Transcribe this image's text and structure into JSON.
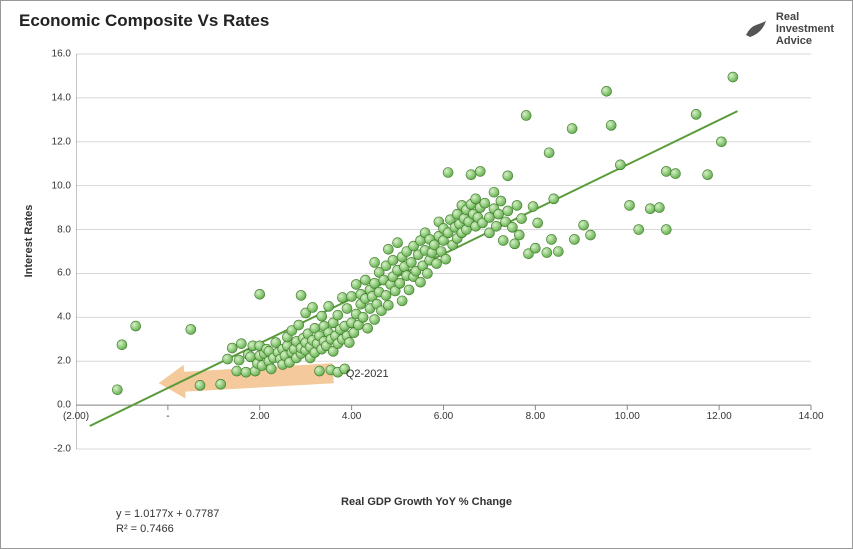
{
  "title": "Economic Composite Vs Rates",
  "brand": {
    "line1": "Real",
    "line2": "Investment",
    "line3": "Advice"
  },
  "y_axis": {
    "label": "Interest Rates",
    "min": -2.0,
    "max": 16.0,
    "step": 2.0
  },
  "x_axis": {
    "label": "Real GDP Growth YoY % Change",
    "min": -2.0,
    "max": 14.0,
    "step": 2.0
  },
  "x_ticks": [
    "(2.00)",
    "-",
    "2.00",
    "4.00",
    "6.00",
    "8.00",
    "10.00",
    "12.00",
    "14.00"
  ],
  "y_ticks": [
    "-2.0",
    "0.0",
    "2.0",
    "4.0",
    "6.0",
    "8.0",
    "10.0",
    "12.0",
    "14.0",
    "16.0"
  ],
  "trendline": {
    "slope": 1.0177,
    "intercept": 0.7787,
    "color": "#5a9b3a",
    "width": 2
  },
  "equation": {
    "formula": "y = 1.0177x + 0.7787",
    "r2": "R² = 0.7466"
  },
  "annotation": {
    "label": "Q2-2021",
    "point_x": 3.7,
    "point_y": 1.5
  },
  "arrow": {
    "from_x": 3.6,
    "from_y": 1.45,
    "to_x": -0.2,
    "to_y": 1.0,
    "color": "#f0b77a",
    "opacity": 0.75,
    "width": 20
  },
  "marker": {
    "fill": "#8dc97a",
    "stroke": "#3d7a2a",
    "radius": 5
  },
  "grid_color": "#d8d8d8",
  "axis_color": "#888888",
  "background": "#ffffff",
  "data": [
    [
      -1.1,
      0.7
    ],
    [
      -1.0,
      2.75
    ],
    [
      -0.7,
      3.6
    ],
    [
      0.5,
      3.45
    ],
    [
      0.7,
      0.9
    ],
    [
      1.15,
      0.95
    ],
    [
      1.3,
      2.1
    ],
    [
      1.4,
      2.6
    ],
    [
      1.5,
      1.55
    ],
    [
      1.55,
      2.05
    ],
    [
      1.6,
      2.8
    ],
    [
      1.7,
      1.5
    ],
    [
      1.75,
      2.3
    ],
    [
      1.8,
      2.2
    ],
    [
      1.85,
      2.7
    ],
    [
      1.9,
      1.55
    ],
    [
      1.95,
      1.9
    ],
    [
      2.0,
      2.25
    ],
    [
      2.0,
      2.7
    ],
    [
      2.0,
      5.05
    ],
    [
      2.05,
      1.8
    ],
    [
      2.1,
      2.35
    ],
    [
      2.15,
      2.55
    ],
    [
      2.2,
      2.0
    ],
    [
      2.2,
      2.45
    ],
    [
      2.25,
      1.65
    ],
    [
      2.3,
      2.15
    ],
    [
      2.35,
      2.85
    ],
    [
      2.4,
      2.4
    ],
    [
      2.45,
      2.1
    ],
    [
      2.5,
      1.85
    ],
    [
      2.5,
      2.55
    ],
    [
      2.55,
      2.25
    ],
    [
      2.6,
      2.7
    ],
    [
      2.6,
      3.1
    ],
    [
      2.65,
      1.95
    ],
    [
      2.7,
      2.4
    ],
    [
      2.7,
      3.4
    ],
    [
      2.75,
      2.55
    ],
    [
      2.8,
      2.15
    ],
    [
      2.8,
      2.9
    ],
    [
      2.85,
      3.65
    ],
    [
      2.9,
      2.35
    ],
    [
      2.9,
      2.6
    ],
    [
      2.9,
      5.0
    ],
    [
      2.95,
      3.05
    ],
    [
      3.0,
      2.5
    ],
    [
      3.0,
      2.85
    ],
    [
      3.0,
      4.2
    ],
    [
      3.05,
      3.25
    ],
    [
      3.1,
      2.15
    ],
    [
      3.1,
      2.65
    ],
    [
      3.15,
      2.95
    ],
    [
      3.15,
      4.45
    ],
    [
      3.2,
      2.4
    ],
    [
      3.2,
      3.5
    ],
    [
      3.25,
      2.8
    ],
    [
      3.3,
      1.55
    ],
    [
      3.3,
      3.15
    ],
    [
      3.35,
      2.55
    ],
    [
      3.35,
      4.05
    ],
    [
      3.4,
      2.9
    ],
    [
      3.4,
      3.6
    ],
    [
      3.45,
      2.7
    ],
    [
      3.5,
      3.3
    ],
    [
      3.5,
      4.5
    ],
    [
      3.55,
      1.6
    ],
    [
      3.55,
      3.0
    ],
    [
      3.6,
      2.45
    ],
    [
      3.6,
      3.75
    ],
    [
      3.65,
      3.15
    ],
    [
      3.7,
      1.5
    ],
    [
      3.7,
      2.8
    ],
    [
      3.7,
      4.1
    ],
    [
      3.75,
      3.45
    ],
    [
      3.8,
      3.0
    ],
    [
      3.8,
      4.9
    ],
    [
      3.85,
      1.65
    ],
    [
      3.85,
      3.6
    ],
    [
      3.9,
      3.15
    ],
    [
      3.9,
      4.4
    ],
    [
      3.95,
      2.85
    ],
    [
      4.0,
      3.75
    ],
    [
      4.0,
      4.95
    ],
    [
      4.05,
      3.3
    ],
    [
      4.1,
      4.15
    ],
    [
      4.1,
      5.5
    ],
    [
      4.15,
      3.65
    ],
    [
      4.2,
      4.6
    ],
    [
      4.2,
      5.05
    ],
    [
      4.25,
      4.0
    ],
    [
      4.3,
      4.85
    ],
    [
      4.3,
      5.7
    ],
    [
      4.35,
      3.5
    ],
    [
      4.4,
      4.4
    ],
    [
      4.4,
      5.25
    ],
    [
      4.45,
      4.95
    ],
    [
      4.5,
      3.9
    ],
    [
      4.5,
      5.55
    ],
    [
      4.5,
      6.5
    ],
    [
      4.55,
      4.6
    ],
    [
      4.6,
      5.15
    ],
    [
      4.6,
      6.05
    ],
    [
      4.65,
      4.3
    ],
    [
      4.7,
      5.7
    ],
    [
      4.75,
      5.0
    ],
    [
      4.75,
      6.35
    ],
    [
      4.8,
      4.55
    ],
    [
      4.8,
      7.1
    ],
    [
      4.85,
      5.5
    ],
    [
      4.9,
      5.85
    ],
    [
      4.9,
      6.6
    ],
    [
      4.95,
      5.2
    ],
    [
      5.0,
      6.15
    ],
    [
      5.0,
      7.4
    ],
    [
      5.05,
      5.55
    ],
    [
      5.1,
      6.75
    ],
    [
      5.1,
      4.75
    ],
    [
      5.15,
      6.3
    ],
    [
      5.2,
      5.9
    ],
    [
      5.2,
      7.0
    ],
    [
      5.25,
      5.25
    ],
    [
      5.3,
      6.5
    ],
    [
      5.35,
      5.85
    ],
    [
      5.35,
      7.25
    ],
    [
      5.4,
      6.1
    ],
    [
      5.45,
      6.85
    ],
    [
      5.5,
      5.6
    ],
    [
      5.5,
      7.5
    ],
    [
      5.55,
      6.35
    ],
    [
      5.6,
      7.05
    ],
    [
      5.6,
      7.85
    ],
    [
      5.65,
      6.0
    ],
    [
      5.7,
      6.6
    ],
    [
      5.7,
      7.55
    ],
    [
      5.75,
      6.95
    ],
    [
      5.8,
      7.3
    ],
    [
      5.85,
      6.45
    ],
    [
      5.9,
      7.7
    ],
    [
      5.9,
      8.35
    ],
    [
      5.95,
      7.0
    ],
    [
      6.0,
      7.5
    ],
    [
      6.0,
      8.05
    ],
    [
      6.05,
      6.65
    ],
    [
      6.1,
      7.85
    ],
    [
      6.1,
      10.6
    ],
    [
      6.15,
      8.45
    ],
    [
      6.2,
      7.3
    ],
    [
      6.25,
      8.1
    ],
    [
      6.3,
      7.6
    ],
    [
      6.3,
      8.7
    ],
    [
      6.35,
      8.25
    ],
    [
      6.4,
      7.85
    ],
    [
      6.4,
      9.1
    ],
    [
      6.45,
      8.5
    ],
    [
      6.5,
      8.0
    ],
    [
      6.5,
      8.9
    ],
    [
      6.55,
      8.35
    ],
    [
      6.6,
      9.15
    ],
    [
      6.6,
      10.5
    ],
    [
      6.65,
      8.7
    ],
    [
      6.7,
      8.15
    ],
    [
      6.7,
      9.4
    ],
    [
      6.75,
      8.55
    ],
    [
      6.8,
      9.0
    ],
    [
      6.8,
      10.65
    ],
    [
      6.85,
      8.3
    ],
    [
      6.9,
      9.2
    ],
    [
      7.0,
      7.85
    ],
    [
      7.0,
      8.55
    ],
    [
      7.1,
      8.95
    ],
    [
      7.1,
      9.7
    ],
    [
      7.15,
      8.15
    ],
    [
      7.2,
      8.7
    ],
    [
      7.25,
      9.3
    ],
    [
      7.3,
      7.5
    ],
    [
      7.35,
      8.35
    ],
    [
      7.4,
      8.85
    ],
    [
      7.4,
      10.45
    ],
    [
      7.5,
      8.1
    ],
    [
      7.55,
      7.35
    ],
    [
      7.6,
      9.1
    ],
    [
      7.65,
      7.75
    ],
    [
      7.7,
      8.5
    ],
    [
      7.8,
      13.2
    ],
    [
      7.85,
      6.9
    ],
    [
      7.95,
      9.05
    ],
    [
      8.0,
      7.15
    ],
    [
      8.05,
      8.3
    ],
    [
      8.25,
      6.95
    ],
    [
      8.3,
      11.5
    ],
    [
      8.35,
      7.55
    ],
    [
      8.4,
      9.4
    ],
    [
      8.5,
      7.0
    ],
    [
      8.8,
      12.6
    ],
    [
      8.85,
      7.55
    ],
    [
      9.05,
      8.2
    ],
    [
      9.2,
      7.75
    ],
    [
      9.55,
      14.3
    ],
    [
      9.65,
      12.75
    ],
    [
      9.85,
      10.95
    ],
    [
      10.05,
      9.1
    ],
    [
      10.25,
      8.0
    ],
    [
      10.5,
      8.95
    ],
    [
      10.7,
      9.0
    ],
    [
      10.85,
      10.65
    ],
    [
      10.85,
      8.0
    ],
    [
      11.05,
      10.55
    ],
    [
      11.5,
      13.25
    ],
    [
      11.75,
      10.5
    ],
    [
      12.05,
      12.0
    ],
    [
      12.3,
      14.95
    ]
  ]
}
